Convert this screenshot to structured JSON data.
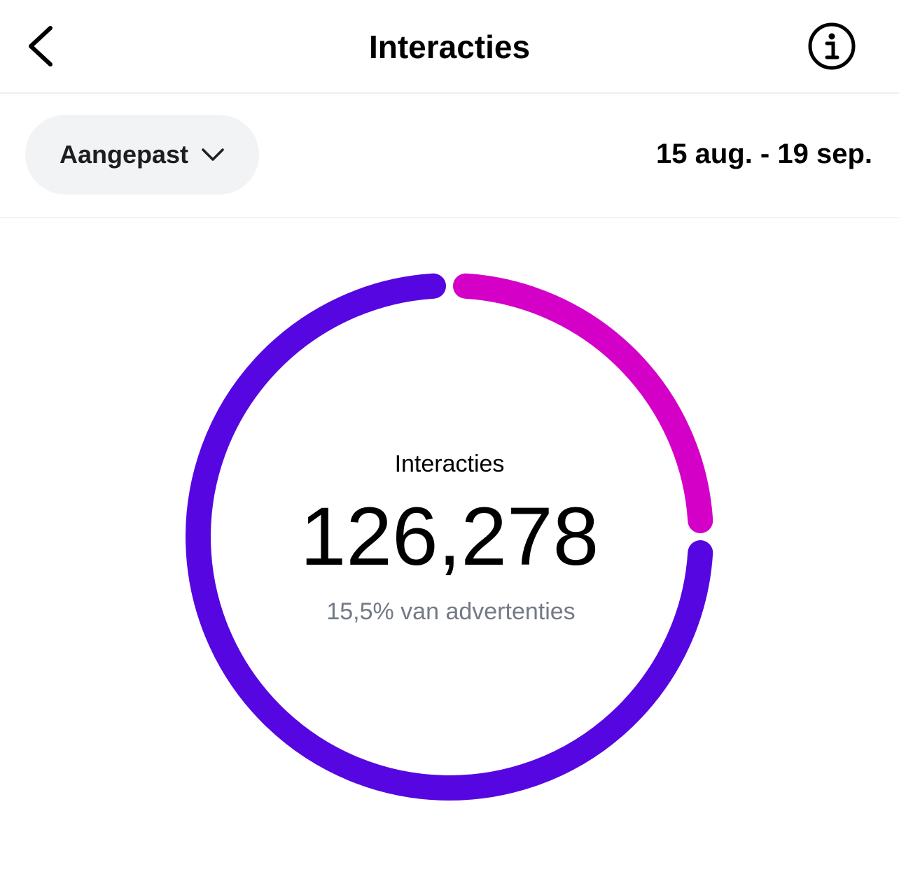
{
  "header": {
    "title": "Interacties"
  },
  "filter": {
    "label": "Aangepast",
    "date_range": "15 aug. - 19 sep."
  },
  "chart_data": {
    "type": "donut",
    "center_label": "Interacties",
    "total": "126,278",
    "subtitle": "15,5% van advertenties",
    "segments": [
      {
        "color": "#d400c7",
        "value": 25
      },
      {
        "color": "#5606e0",
        "value": 75
      }
    ]
  }
}
